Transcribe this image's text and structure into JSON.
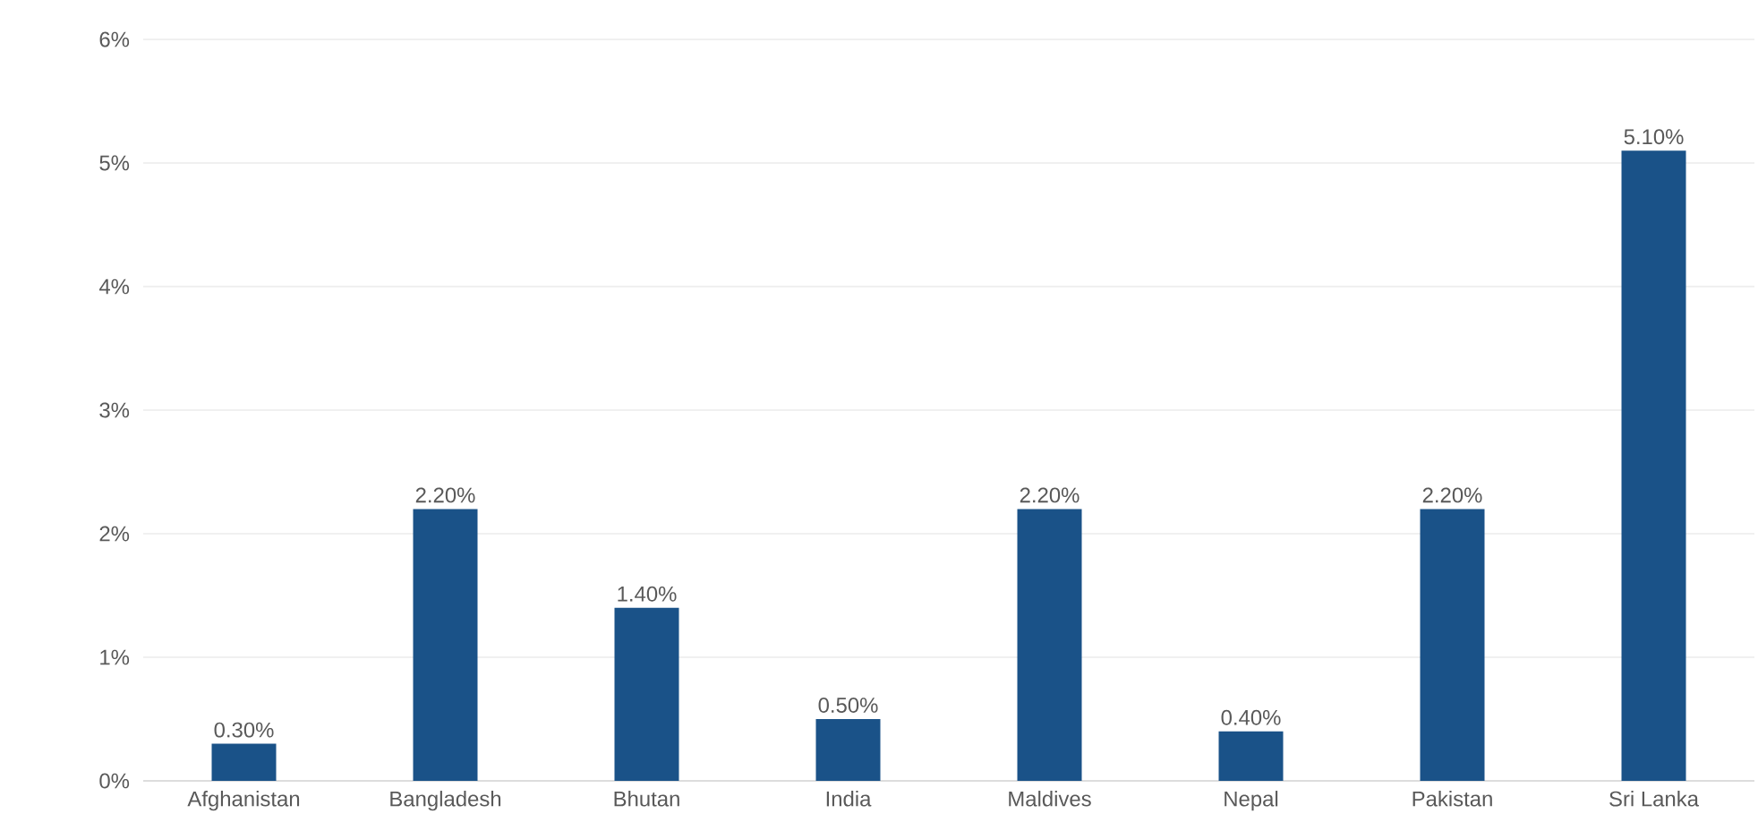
{
  "chart_data": {
    "type": "bar",
    "categories": [
      "Afghanistan",
      "Bangladesh",
      "Bhutan",
      "India",
      "Maldives",
      "Nepal",
      "Pakistan",
      "Sri Lanka"
    ],
    "values": [
      0.3,
      2.2,
      1.4,
      0.5,
      2.2,
      0.4,
      2.2,
      5.1
    ],
    "value_labels": [
      "0.30%",
      "2.20%",
      "1.40%",
      "0.50%",
      "2.20%",
      "0.40%",
      "2.20%",
      "5.10%"
    ],
    "color": "#1a5288",
    "ylim": [
      0,
      6
    ],
    "yticks": [
      {
        "value": 0,
        "label": "0%"
      },
      {
        "value": 1,
        "label": "1%"
      },
      {
        "value": 2,
        "label": "2%"
      },
      {
        "value": 3,
        "label": "3%"
      },
      {
        "value": 4,
        "label": "4%"
      },
      {
        "value": 5,
        "label": "5%"
      },
      {
        "value": 6,
        "label": "6%"
      }
    ],
    "grid": "y"
  }
}
